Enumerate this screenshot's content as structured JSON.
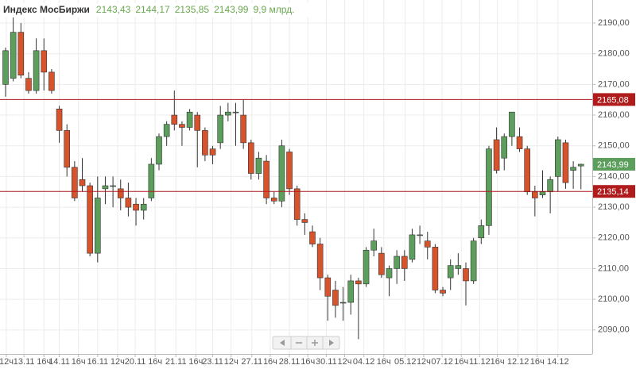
{
  "chart_data": {
    "type": "candlestick",
    "title": "Индекс МосБиржи",
    "header_values": [
      "2143,43",
      "2144,17",
      "2135,85",
      "2143,99",
      "9,9 млрд."
    ],
    "up_color": "#5c9e5c",
    "down_color": "#d6532b",
    "level_color": "#b01c1c",
    "grid": true,
    "open": [
      2170,
      2172,
      2187,
      2172,
      2168,
      2181,
      2174,
      2162,
      2155,
      2143,
      2139,
      2137,
      2115,
      2136,
      2137,
      2136,
      2133,
      2131,
      2129,
      2133,
      2144,
      2153,
      2160,
      2157,
      2156,
      2160,
      2155,
      2149,
      2151,
      2160,
      2161,
      2160,
      2151,
      2141,
      2145,
      2133,
      2132,
      2148,
      2136,
      2126,
      2122,
      2118,
      2107,
      2103,
      2099,
      2099,
      2106,
      2105,
      2116,
      2115,
      2107,
      2110,
      2114,
      2113,
      2121,
      2119,
      2117,
      2103,
      2107,
      2110,
      2110,
      2106,
      2120,
      2124,
      2152,
      2146,
      2153,
      2153,
      2149,
      2135,
      2134,
      2135,
      2140,
      2151,
      2142,
      2143.43
    ],
    "high": [
      2182,
      2192,
      2190,
      2174,
      2185,
      2185,
      2175,
      2163,
      2157,
      2145,
      2146,
      2138,
      2140,
      2140,
      2140,
      2139,
      2138,
      2133,
      2133,
      2146,
      2154,
      2158,
      2168,
      2158,
      2162,
      2161,
      2156,
      2150,
      2163,
      2164,
      2164,
      2165,
      2152,
      2148,
      2147,
      2135,
      2152,
      2149,
      2137,
      2128,
      2124,
      2120,
      2108,
      2106,
      2104,
      2108,
      2107,
      2117,
      2123,
      2117,
      2111,
      2116,
      2116,
      2123,
      2124,
      2122,
      2118,
      2104,
      2113,
      2115,
      2112,
      2120,
      2126,
      2150,
      2156,
      2154,
      2161,
      2156,
      2150,
      2137,
      2142,
      2140,
      2153,
      2152,
      2145,
      2144.17
    ],
    "low": [
      2166,
      2171,
      2172,
      2167,
      2167,
      2168,
      2167,
      2151,
      2140,
      2132,
      2135,
      2114,
      2112,
      2131,
      2130,
      2129,
      2127,
      2124,
      2126,
      2132,
      2142,
      2150,
      2155,
      2150,
      2155,
      2143,
      2145,
      2144,
      2149,
      2158,
      2150,
      2149,
      2139,
      2139,
      2131,
      2131,
      2130,
      2134,
      2124,
      2121,
      2117,
      2103,
      2093,
      2094,
      2093,
      2095,
      2087,
      2104,
      2114,
      2107,
      2101,
      2105,
      2106,
      2112,
      2118,
      2113,
      2102,
      2101,
      2103,
      2108,
      2098,
      2105,
      2118,
      2121,
      2141,
      2142,
      2150,
      2148,
      2134,
      2127,
      2133,
      2128,
      2135,
      2136,
      2136,
      2135.85
    ],
    "close": [
      2181,
      2187,
      2173,
      2168,
      2181,
      2174,
      2168,
      2155,
      2143,
      2133,
      2137,
      2115,
      2133,
      2137,
      2137,
      2133,
      2130,
      2129,
      2131,
      2144,
      2153,
      2157,
      2157,
      2156,
      2161,
      2155,
      2147,
      2147,
      2160,
      2161,
      2161,
      2151,
      2141,
      2146,
      2133,
      2132,
      2150,
      2136,
      2126,
      2125,
      2118,
      2107,
      2101,
      2098,
      2099,
      2106,
      2105,
      2116,
      2119,
      2108,
      2110,
      2114,
      2110,
      2121,
      2121,
      2117,
      2103,
      2102,
      2111,
      2111,
      2106,
      2119,
      2124,
      2149,
      2142,
      2153,
      2161,
      2149,
      2135,
      2133,
      2135,
      2139,
      2152,
      2138,
      2143,
      2143.99
    ],
    "ylim": [
      2082.2,
      2197.5
    ],
    "yticks": [
      {
        "value": 2090,
        "label": "2090,00"
      },
      {
        "value": 2100,
        "label": "2100,00"
      },
      {
        "value": 2110,
        "label": "2110,00"
      },
      {
        "value": 2120,
        "label": "2120,00"
      },
      {
        "value": 2130,
        "label": "2130,00"
      },
      {
        "value": 2140,
        "label": "2140,00"
      },
      {
        "value": 2150,
        "label": "2150,00"
      },
      {
        "value": 2160,
        "label": "2160,00"
      },
      {
        "value": 2170,
        "label": "2170,00"
      },
      {
        "value": 2180,
        "label": "2180,00"
      },
      {
        "value": 2190,
        "label": "2190,00"
      }
    ],
    "xticks": [
      {
        "value": 0.1,
        "label": "12ч"
      },
      {
        "value": 2.4,
        "label": "13.11"
      },
      {
        "value": 5,
        "label": "16ч"
      },
      {
        "value": 7,
        "label": "14.11"
      },
      {
        "value": 9.5,
        "label": "16ч"
      },
      {
        "value": 12,
        "label": "16.11"
      },
      {
        "value": 14.6,
        "label": "12ч"
      },
      {
        "value": 16.9,
        "label": "20.11"
      },
      {
        "value": 19.5,
        "label": "16ч"
      },
      {
        "value": 22.2,
        "label": "21.11"
      },
      {
        "value": 24.8,
        "label": "16ч"
      },
      {
        "value": 27,
        "label": "23.11"
      },
      {
        "value": 29.4,
        "label": "12ч"
      },
      {
        "value": 32.1,
        "label": "27.11"
      },
      {
        "value": 34.5,
        "label": "16ч"
      },
      {
        "value": 37,
        "label": "28.11"
      },
      {
        "value": 39.4,
        "label": "16ч"
      },
      {
        "value": 41.8,
        "label": "30.11"
      },
      {
        "value": 44.2,
        "label": "12ч"
      },
      {
        "value": 46.7,
        "label": "04.12"
      },
      {
        "value": 49.3,
        "label": "16ч"
      },
      {
        "value": 52.1,
        "label": "05.12"
      },
      {
        "value": 54.5,
        "label": "12ч"
      },
      {
        "value": 56.9,
        "label": "07.12"
      },
      {
        "value": 59.4,
        "label": "16ч"
      },
      {
        "value": 61.8,
        "label": "11.12"
      },
      {
        "value": 64.1,
        "label": "16ч"
      },
      {
        "value": 66.8,
        "label": "12.12"
      },
      {
        "value": 69.3,
        "label": "16ч"
      },
      {
        "value": 72,
        "label": "14.12"
      }
    ],
    "levels": [
      {
        "value": 2165.08,
        "label": "2165,08"
      },
      {
        "value": 2135.14,
        "label": "2135,14"
      }
    ],
    "last_price": {
      "value": 2143.99,
      "label": "2143,99"
    }
  }
}
